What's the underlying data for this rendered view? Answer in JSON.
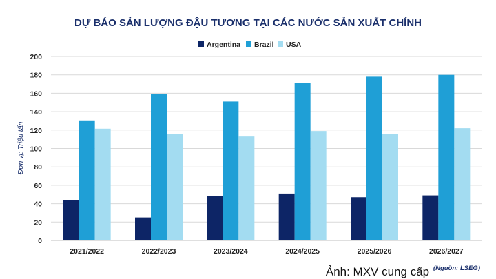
{
  "chart_data": {
    "type": "bar",
    "title": "DỰ BÁO SẢN LƯỢNG ĐẬU TƯƠNG TẠI CÁC NƯỚC SẢN XUẤT CHÍNH",
    "ylabel": "Đơn vị: Triệu tấn",
    "xlabel": "",
    "categories": [
      "2021/2022",
      "2022/2023",
      "2023/2024",
      "2024/2025",
      "2025/2026",
      "2026/2027"
    ],
    "series": [
      {
        "name": "Argentina",
        "color": "#0d2566",
        "values": [
          44,
          25,
          48,
          51,
          47,
          49
        ]
      },
      {
        "name": "Brazil",
        "color": "#1f9fd6",
        "values": [
          130.5,
          159,
          151,
          171,
          178,
          180
        ]
      },
      {
        "name": "USA",
        "color": "#a3dcf1",
        "values": [
          121.5,
          116,
          113,
          119,
          116,
          122
        ]
      }
    ],
    "ylim": [
      0,
      200
    ],
    "yticks": [
      0,
      20,
      40,
      60,
      80,
      100,
      120,
      140,
      160,
      180,
      200
    ],
    "grid": true,
    "legend_position": "top-center",
    "caption": "Ảnh: MXV cung cấp",
    "source": "(Nguồn: LSEG)"
  }
}
